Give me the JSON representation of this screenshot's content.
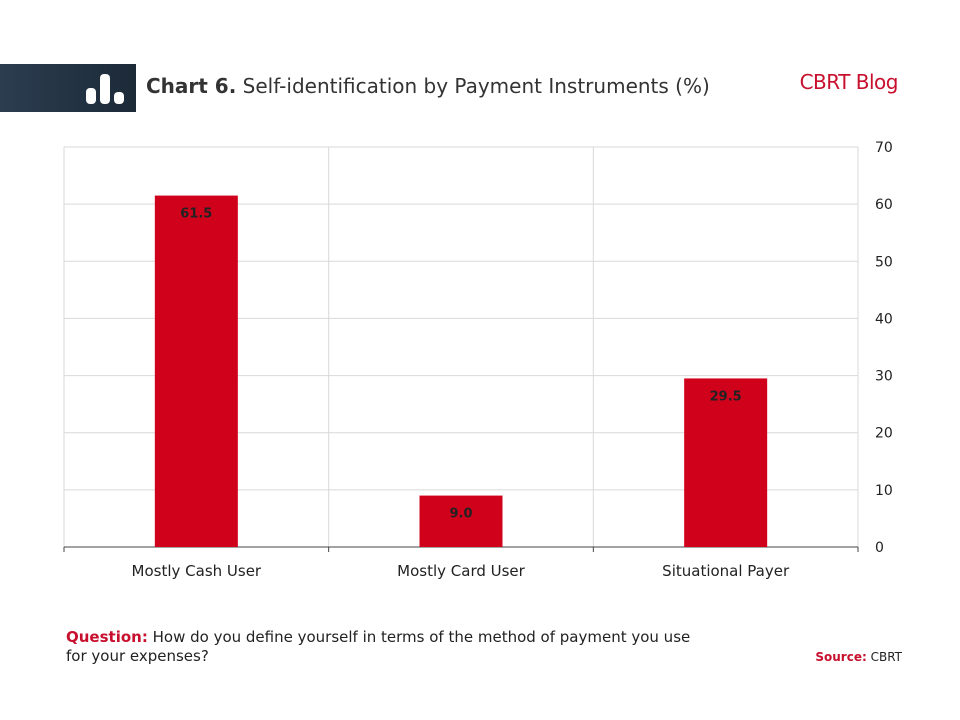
{
  "header": {
    "title_prefix": "Chart 6.",
    "title_text": "Self-identification by Payment Instruments",
    "title_unit": "(%)",
    "brand": "CBRT Blog",
    "icon": "bar-chart-icon"
  },
  "chart_data": {
    "type": "bar",
    "categories": [
      "Mostly Cash User",
      "Mostly Card User",
      "Situational Payer"
    ],
    "values": [
      61.5,
      9.0,
      29.5
    ],
    "value_labels": [
      "61.5",
      "9.0",
      "29.5"
    ],
    "ylim": [
      0,
      70
    ],
    "yticks": [
      0,
      10,
      20,
      30,
      40,
      50,
      60,
      70
    ],
    "y_axis_position": "right",
    "grid": true,
    "bar_color": "#d0021b"
  },
  "footer": {
    "question_label": "Question:",
    "question_text": "How do you define yourself in terms of the method of payment you use for your expenses?",
    "source_label": "Source:",
    "source_text": "CBRT"
  }
}
